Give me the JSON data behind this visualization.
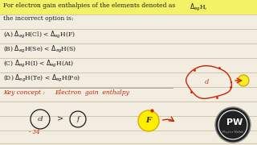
{
  "bg_color": "#f2ede0",
  "text_color": "#1a1a1a",
  "red_color": "#cc2200",
  "yellow_hl": "#ffee00",
  "line_color": "#c0b898",
  "title1": "For electron gain enthalpies of the elements denoted as ",
  "title_delta": "$\\Delta_{eg}$H,",
  "title2": "the incorrect option is:",
  "opt_A": "(A) $\\Delta_{eg}$H(Cl) < $\\Delta_{eg}$H(F)",
  "opt_B": "(B) $\\Delta_{eg}$H(Se) < $\\Delta_{eg}$H(S)",
  "opt_C": "(C) $\\Delta_{eg}$H(I) < $\\Delta_{eg}$H(At)",
  "opt_D": "(D) $\\Delta_{eg}$H(Te) < $\\Delta_{eg}$H(Po)",
  "key_concept": "Key concept :",
  "key_detail": "Electron  gain  enthalpy",
  "bottom_neg": "- 34",
  "pw_text1": "P",
  "pw_text2": "W"
}
